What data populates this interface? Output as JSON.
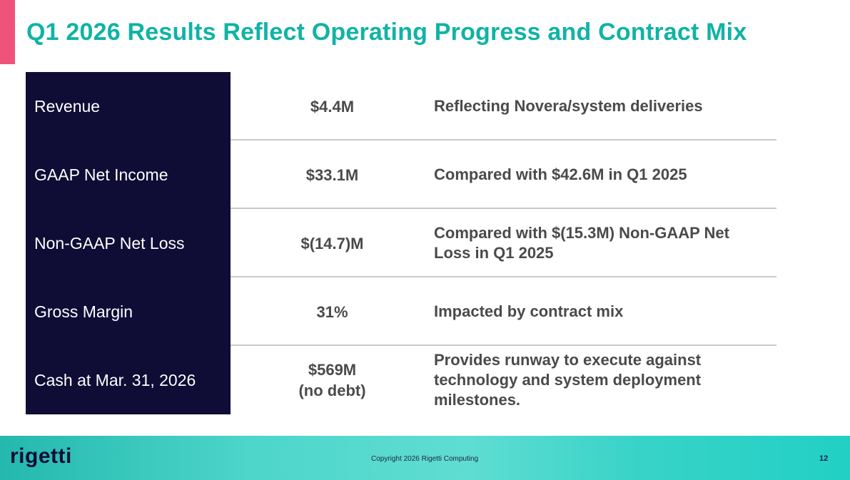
{
  "slide": {
    "title": "Q1 2026 Results Reflect Operating Progress and Contract Mix"
  },
  "table": {
    "rows": [
      {
        "label": "Revenue",
        "value": "$4.4M",
        "note": "Reflecting Novera/system deliveries"
      },
      {
        "label": "GAAP Net Income",
        "value": "$33.1M",
        "note": "Compared with $42.6M in Q1 2025"
      },
      {
        "label": "Non-GAAP Net Loss",
        "value": "$(14.7)M",
        "note": "Compared with $(15.3M) Non-GAAP Net Loss in Q1 2025"
      },
      {
        "label": "Gross Margin",
        "value": "31%",
        "note": "Impacted by contract mix"
      },
      {
        "label": "Cash at Mar. 31, 2026",
        "value": "$569M\n(no debt)",
        "note": "Provides runway to execute against technology and system deployment milestones."
      }
    ]
  },
  "footer": {
    "logo_text": "rigetti",
    "copyright": "Copyright 2026 Rigetti Computing",
    "page_number": "12"
  },
  "colors": {
    "title": "#10b3a6",
    "accent_bar": "#f0537a",
    "label_cell_bg": "#0f0c36",
    "footer_teal": "#2fd0c4"
  }
}
